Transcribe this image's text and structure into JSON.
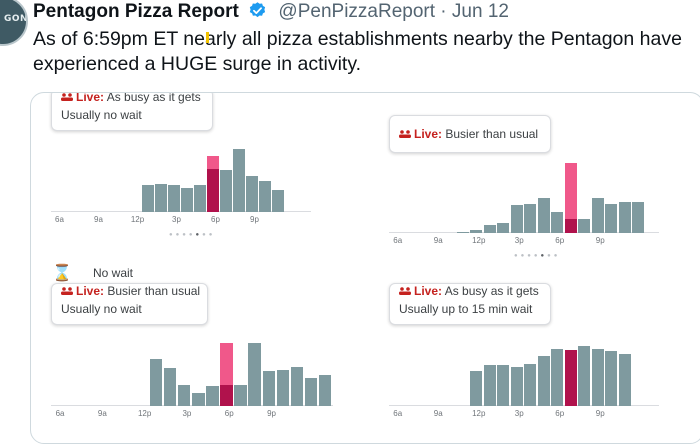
{
  "tweet": {
    "author_name": "Pentagon Pizza Report",
    "handle": "@PenPizzaReport",
    "separator": "·",
    "date": "Jun 12",
    "avatar_text": "GON",
    "text": "As of 6:59pm ET nearly all pizza establishments nearby the Pentagon have experienced a HUGE surge in activity."
  },
  "colors": {
    "bar_normal": "#7f9a9f",
    "bar_live_light": "#f0588a",
    "bar_live_dark": "#b0124c",
    "live_red": "#c5221f",
    "verified_blue": "#1d9bf0"
  },
  "overlay": {
    "hourglass_icon": "⌛",
    "no_wait_label": "No wait"
  },
  "panels": [
    {
      "live_label": "Live:",
      "live_status": "As busy as it gets",
      "callout_text": "Usually no wait",
      "ticks": [
        "6a",
        "9a",
        "12p",
        "3p",
        "6p",
        "9p"
      ],
      "bars": [
        0,
        0,
        0,
        0,
        0,
        0,
        0,
        0.38,
        0.4,
        0.38,
        0.35,
        0.38,
        0.45,
        0.6,
        0.9,
        0.52,
        0.45,
        0.32,
        0,
        0
      ],
      "live_index": 12,
      "live_now": 0.8,
      "live_usual": 0.62
    },
    {
      "live_label": "Live:",
      "live_status": "Busier than usual",
      "callout_text": "",
      "ticks": [
        "6a",
        "9a",
        "12p",
        "3p",
        "6p",
        "9p"
      ],
      "bars": [
        0,
        0,
        0,
        0,
        0,
        0.02,
        0.05,
        0.12,
        0.14,
        0.4,
        0.42,
        0.5,
        0.3,
        0.2,
        0.2,
        0.5,
        0.42,
        0.44,
        0.44,
        0
      ],
      "live_index": 13,
      "live_now": 1.0,
      "live_usual": 0.2
    },
    {
      "live_label": "Live:",
      "live_status": "Busier than usual",
      "callout_text": "Usually no wait",
      "ticks": [
        "6a",
        "9a",
        "12p",
        "3p",
        "6p",
        "9p"
      ],
      "bars": [
        0,
        0,
        0,
        0,
        0,
        0,
        0,
        0.67,
        0.55,
        0.3,
        0.18,
        0.28,
        0.22,
        0.3,
        0.9,
        0.5,
        0.52,
        0.56,
        0.4,
        0.44
      ],
      "live_index": 12,
      "live_now": 0.9,
      "live_usual": 0.3
    },
    {
      "live_label": "Live:",
      "live_status": "As busy as it gets",
      "callout_text": "Usually up to 15 min wait",
      "ticks": [
        "6a",
        "9a",
        "12p",
        "3p",
        "6p",
        "9p"
      ],
      "bars": [
        0,
        0,
        0,
        0,
        0,
        0,
        0.5,
        0.58,
        0.58,
        0.56,
        0.6,
        0.72,
        0.82,
        0.82,
        0.86,
        0.82,
        0.78,
        0.74,
        0,
        0
      ],
      "live_index": 13,
      "live_now": 0.8,
      "live_usual": 0.9
    }
  ]
}
